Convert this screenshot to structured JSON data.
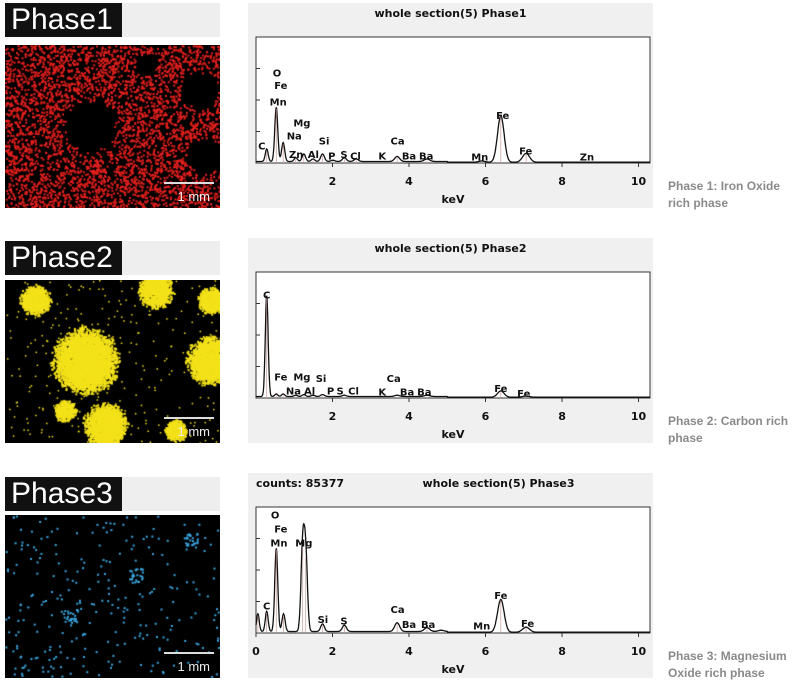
{
  "phases": [
    {
      "map_label": "Phase1",
      "map_color": "#e8201e",
      "scale_label": "1 mm",
      "caption": "Phase 1: Iron Oxide rich phase",
      "counts": "",
      "title": "whole section(5) Phase1"
    },
    {
      "map_label": "Phase2",
      "map_color": "#f4e21a",
      "scale_label": "1 mm",
      "caption": "Phase 2: Carbon rich phase",
      "counts": "",
      "title": "whole section(5) Phase2"
    },
    {
      "map_label": "Phase3",
      "map_color": "#3aa6e0",
      "scale_label": "1 mm",
      "caption": "Phase 3: Magnesium Oxide rich phase",
      "counts": "counts: 85377",
      "title": "whole section(5) Phase3"
    }
  ],
  "chart_data": [
    {
      "type": "line",
      "title": "whole section(5) Phase1",
      "xlabel": "keV",
      "xlim": [
        0,
        10.3
      ],
      "ylim": [
        0,
        1
      ],
      "xticks": [
        2,
        4,
        6,
        8,
        10
      ],
      "peaks": [
        [
          0.28,
          0.1
        ],
        [
          0.53,
          0.43
        ],
        [
          0.71,
          0.15
        ],
        [
          1.04,
          0.03
        ],
        [
          1.25,
          0.06
        ],
        [
          1.49,
          0.02
        ],
        [
          1.74,
          0.06
        ],
        [
          2.01,
          0.01
        ],
        [
          2.31,
          0.03
        ],
        [
          2.62,
          0.02
        ],
        [
          3.69,
          0.04
        ],
        [
          4.47,
          0.02
        ],
        [
          5.9,
          0.01
        ],
        [
          6.4,
          0.37
        ],
        [
          7.06,
          0.07
        ]
      ],
      "annotations": [
        [
          "C",
          0.15,
          0.14
        ],
        [
          "O",
          0.55,
          0.72
        ],
        [
          "Fe",
          0.65,
          0.62
        ],
        [
          "Mn",
          0.58,
          0.49
        ],
        [
          "Mg",
          1.2,
          0.32
        ],
        [
          "Na",
          1.0,
          0.22
        ],
        [
          "Zn",
          1.05,
          0.07
        ],
        [
          "Al",
          1.5,
          0.07
        ],
        [
          "Si",
          1.78,
          0.18
        ],
        [
          "P",
          1.98,
          0.06
        ],
        [
          "S",
          2.3,
          0.07
        ],
        [
          "Cl",
          2.6,
          0.06
        ],
        [
          "K",
          3.3,
          0.06
        ],
        [
          "Ca",
          3.7,
          0.18
        ],
        [
          "Ba",
          4.0,
          0.06
        ],
        [
          "Ba",
          4.45,
          0.06
        ],
        [
          "Mn",
          5.85,
          0.05
        ],
        [
          "Fe",
          6.45,
          0.38
        ],
        [
          "Fe",
          7.05,
          0.1
        ],
        [
          "Zn",
          8.65,
          0.05
        ]
      ]
    },
    {
      "type": "line",
      "title": "whole section(5) Phase2",
      "xlabel": "keV",
      "xlim": [
        0,
        10.3
      ],
      "ylim": [
        0,
        1
      ],
      "xticks": [
        2,
        4,
        6,
        8,
        10
      ],
      "peaks": [
        [
          0.28,
          0.8
        ],
        [
          0.53,
          0.02
        ],
        [
          0.71,
          0.02
        ],
        [
          1.04,
          0.01
        ],
        [
          1.25,
          0.015
        ],
        [
          1.49,
          0.01
        ],
        [
          1.74,
          0.015
        ],
        [
          2.31,
          0.01
        ],
        [
          3.69,
          0.01
        ],
        [
          4.47,
          0.01
        ],
        [
          6.4,
          0.05
        ],
        [
          7.06,
          0.01
        ]
      ],
      "annotations": [
        [
          "C",
          0.28,
          0.82
        ],
        [
          "Fe",
          0.65,
          0.17
        ],
        [
          "Mg",
          1.2,
          0.17
        ],
        [
          "Si",
          1.7,
          0.16
        ],
        [
          "Na",
          0.98,
          0.06
        ],
        [
          "Al",
          1.4,
          0.06
        ],
        [
          "P",
          1.95,
          0.06
        ],
        [
          "S",
          2.2,
          0.06
        ],
        [
          "Cl",
          2.55,
          0.06
        ],
        [
          "K",
          3.3,
          0.05
        ],
        [
          "Ca",
          3.6,
          0.16
        ],
        [
          "Ba",
          3.95,
          0.05
        ],
        [
          "Ba",
          4.4,
          0.05
        ],
        [
          "Fe",
          6.4,
          0.08
        ],
        [
          "Fe",
          7.0,
          0.04
        ]
      ]
    },
    {
      "type": "line",
      "title": "whole section(5) Phase3",
      "counts": "counts: 85377",
      "xlabel": "keV",
      "xlim": [
        0,
        10.3
      ],
      "ylim": [
        0,
        1
      ],
      "xticks": [
        0,
        2,
        4,
        6,
        8,
        10
      ],
      "peaks": [
        [
          0.05,
          0.14
        ],
        [
          0.28,
          0.16
        ],
        [
          0.53,
          0.66
        ],
        [
          0.72,
          0.14
        ],
        [
          1.22,
          0.66
        ],
        [
          1.3,
          0.6
        ],
        [
          1.74,
          0.06
        ],
        [
          2.31,
          0.05
        ],
        [
          3.69,
          0.07
        ],
        [
          4.47,
          0.03
        ],
        [
          4.84,
          0.01
        ],
        [
          6.4,
          0.26
        ],
        [
          7.06,
          0.04
        ]
      ],
      "annotations": [
        [
          "O",
          0.5,
          0.94
        ],
        [
          "Fe",
          0.65,
          0.83
        ],
        [
          "Mn",
          0.6,
          0.72
        ],
        [
          "Mg",
          1.25,
          0.72
        ],
        [
          "C",
          0.28,
          0.22
        ],
        [
          "Si",
          1.75,
          0.11
        ],
        [
          "S",
          2.3,
          0.1
        ],
        [
          "Ca",
          3.7,
          0.19
        ],
        [
          "Ba",
          4.0,
          0.07
        ],
        [
          "Ba",
          4.5,
          0.07
        ],
        [
          "Mn",
          5.9,
          0.06
        ],
        [
          "Fe",
          6.4,
          0.3
        ],
        [
          "Fe",
          7.1,
          0.08
        ]
      ]
    }
  ]
}
